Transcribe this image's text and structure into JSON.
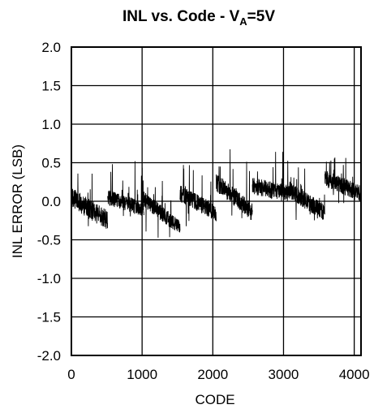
{
  "chart_data": {
    "type": "line",
    "title": {
      "main": "INL vs. Code - V",
      "subscript": "A",
      "suffix": "=5V"
    },
    "xlabel": "CODE",
    "ylabel": "INL ERROR (LSB)",
    "xlim": [
      0,
      4096
    ],
    "ylim": [
      -2.0,
      2.0
    ],
    "x_ticks": [
      0,
      1000,
      2000,
      3000,
      4000
    ],
    "x_tick_labels": [
      "0",
      "1000",
      "2000",
      "3000",
      "4000"
    ],
    "y_ticks": [
      2.0,
      1.5,
      1.0,
      0.5,
      0.0,
      -0.5,
      -1.0,
      -1.5,
      -2.0
    ],
    "y_tick_labels": [
      "2.0",
      "1.5",
      "1.0",
      "0.5",
      "0.0",
      "-0.5",
      "-1.0",
      "-1.5",
      "-2.0"
    ],
    "grid": true,
    "line_color": "#000000",
    "series": [
      {
        "segments": [
          {
            "x_start": 0,
            "x_end": 512,
            "y_start": 0.05,
            "y_end": -0.25,
            "noise_amplitude": 0.13,
            "spike_max": 0.52,
            "spike_min": -0.45
          },
          {
            "x_start": 512,
            "x_end": 1024,
            "y_start": 0.05,
            "y_end": -0.1,
            "noise_amplitude": 0.1,
            "spike_max": 0.52,
            "spike_min": -0.2
          },
          {
            "x_start": 1024,
            "x_end": 1536,
            "y_start": 0.03,
            "y_end": -0.35,
            "noise_amplitude": 0.1,
            "spike_max": 0.35,
            "spike_min": -0.5
          },
          {
            "x_start": 1536,
            "x_end": 2048,
            "y_start": 0.1,
            "y_end": -0.15,
            "noise_amplitude": 0.11,
            "spike_max": 0.5,
            "spike_min": -0.35
          },
          {
            "x_start": 2048,
            "x_end": 2560,
            "y_start": 0.25,
            "y_end": -0.15,
            "noise_amplitude": 0.12,
            "spike_max": 0.7,
            "spike_min": -0.25
          },
          {
            "x_start": 2560,
            "x_end": 3072,
            "y_start": 0.2,
            "y_end": 0.1,
            "noise_amplitude": 0.11,
            "spike_max": 0.7,
            "spike_min": -0.05
          },
          {
            "x_start": 3072,
            "x_end": 3584,
            "y_start": 0.15,
            "y_end": -0.15,
            "noise_amplitude": 0.11,
            "spike_max": 0.45,
            "spike_min": -0.25
          },
          {
            "x_start": 3584,
            "x_end": 4095,
            "y_start": 0.3,
            "y_end": 0.1,
            "noise_amplitude": 0.11,
            "spike_max": 0.6,
            "spike_min": -0.05
          }
        ]
      }
    ]
  }
}
